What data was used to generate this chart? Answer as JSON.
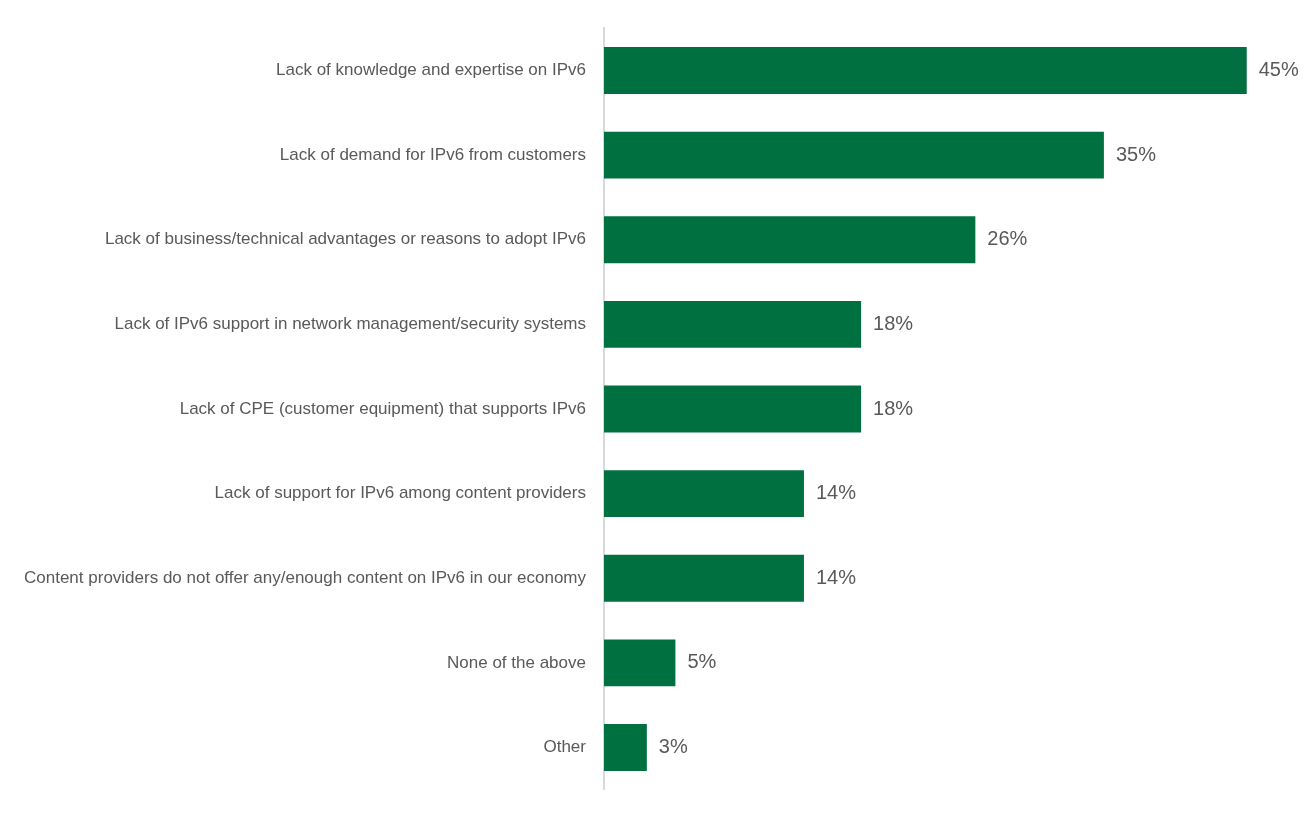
{
  "chart_data": {
    "type": "bar",
    "orientation": "horizontal",
    "categories": [
      "Lack of knowledge and expertise on IPv6",
      "Lack of demand for IPv6 from customers",
      "Lack of business/technical advantages or reasons to adopt IPv6",
      "Lack of IPv6 support in network management/security systems",
      "Lack of CPE (customer equipment) that supports IPv6",
      "Lack of support for IPv6 among content providers",
      "Content providers do not offer any/enough content on IPv6 in our economy",
      "None of the above",
      "Other"
    ],
    "values": [
      45,
      35,
      26,
      18,
      18,
      14,
      14,
      5,
      3
    ],
    "value_labels": [
      "45%",
      "35%",
      "26%",
      "18%",
      "18%",
      "14%",
      "14%",
      "5%",
      "3%"
    ],
    "color": "#007041"
  }
}
